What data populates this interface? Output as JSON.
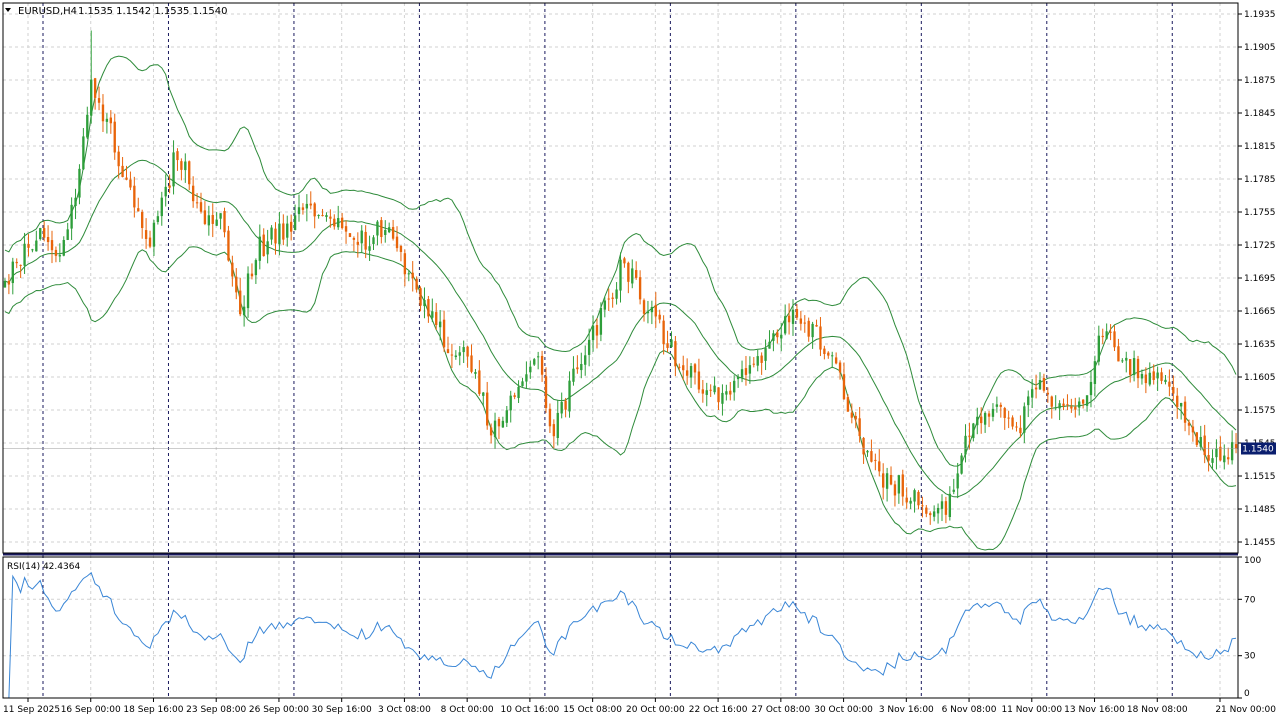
{
  "header": {
    "symbol": "EURUSD,H4",
    "ohlc": "1.1535 1.1542 1.1535 1.1540"
  },
  "current_price_label": "1.1540",
  "colors": {
    "bull": "#2e9e3a",
    "bear": "#e8640a",
    "bands": "#2e8b3a",
    "rsi": "#3a86d6",
    "grid": "#d2d2d2",
    "separator": "#1a1a5e",
    "price_tag": "#0a1e6e"
  },
  "chart_data": [
    {
      "type": "candlestick",
      "title": "EURUSD,H4",
      "indicators": [
        "Bollinger Bands"
      ],
      "ylim": [
        1.1445,
        1.1945
      ],
      "yticks": [
        "1.1935",
        "1.1905",
        "1.1875",
        "1.1845",
        "1.1815",
        "1.1785",
        "1.1755",
        "1.1725",
        "1.1695",
        "1.1665",
        "1.1635",
        "1.1605",
        "1.1575",
        "1.1545",
        "1.1515",
        "1.1485",
        "1.1455"
      ],
      "x_labels": [
        "11 Sep 2025",
        "16 Sep 00:00",
        "18 Sep 16:00",
        "23 Sep 08:00",
        "26 Sep 00:00",
        "30 Sep 16:00",
        "3 Oct 08:00",
        "8 Oct 00:00",
        "10 Oct 16:00",
        "15 Oct 08:00",
        "20 Oct 00:00",
        "22 Oct 16:00",
        "27 Oct 08:00",
        "30 Oct 00:00",
        "3 Nov 16:00",
        "6 Nov 08:00",
        "11 Nov 00:00",
        "13 Nov 16:00",
        "18 Nov 08:00",
        "21 Nov 00:00"
      ],
      "anchors": [
        [
          0,
          1.169
        ],
        [
          8,
          1.1735
        ],
        [
          13,
          1.171
        ],
        [
          18,
          1.177
        ],
        [
          22,
          1.187
        ],
        [
          26,
          1.184
        ],
        [
          31,
          1.178
        ],
        [
          37,
          1.173
        ],
        [
          44,
          1.181
        ],
        [
          51,
          1.174
        ],
        [
          55,
          1.1745
        ],
        [
          60,
          1.1665
        ],
        [
          64,
          1.172
        ],
        [
          71,
          1.174
        ],
        [
          78,
          1.176
        ],
        [
          84,
          1.1745
        ],
        [
          91,
          1.173
        ],
        [
          97,
          1.174
        ],
        [
          104,
          1.169
        ],
        [
          112,
          1.164
        ],
        [
          118,
          1.162
        ],
        [
          124,
          1.156
        ],
        [
          130,
          1.159
        ],
        [
          135,
          1.163
        ],
        [
          140,
          1.155
        ],
        [
          146,
          1.162
        ],
        [
          152,
          1.166
        ],
        [
          158,
          1.171
        ],
        [
          163,
          1.167
        ],
        [
          170,
          1.163
        ],
        [
          176,
          1.16
        ],
        [
          182,
          1.159
        ],
        [
          188,
          1.161
        ],
        [
          196,
          1.1635
        ],
        [
          202,
          1.1665
        ],
        [
          208,
          1.164
        ],
        [
          213,
          1.16
        ],
        [
          218,
          1.1545
        ],
        [
          224,
          1.1515
        ],
        [
          230,
          1.15
        ],
        [
          236,
          1.148
        ],
        [
          240,
          1.149
        ],
        [
          245,
          1.1545
        ],
        [
          252,
          1.1575
        ],
        [
          258,
          1.1555
        ],
        [
          264,
          1.16
        ],
        [
          270,
          1.1575
        ],
        [
          275,
          1.1585
        ],
        [
          280,
          1.165
        ],
        [
          286,
          1.162
        ],
        [
          292,
          1.1605
        ],
        [
          298,
          1.159
        ],
        [
          303,
          1.1555
        ],
        [
          310,
          1.1525
        ],
        [
          314,
          1.154
        ]
      ],
      "candles_count": 315
    },
    {
      "type": "line",
      "title": "RSI(14) 42.4364",
      "yticks": [
        "100",
        "70",
        "30",
        "0"
      ],
      "ylim": [
        0,
        100
      ],
      "last_value": 42.4364
    }
  ],
  "rsi_header": "RSI(14) 42.4364"
}
